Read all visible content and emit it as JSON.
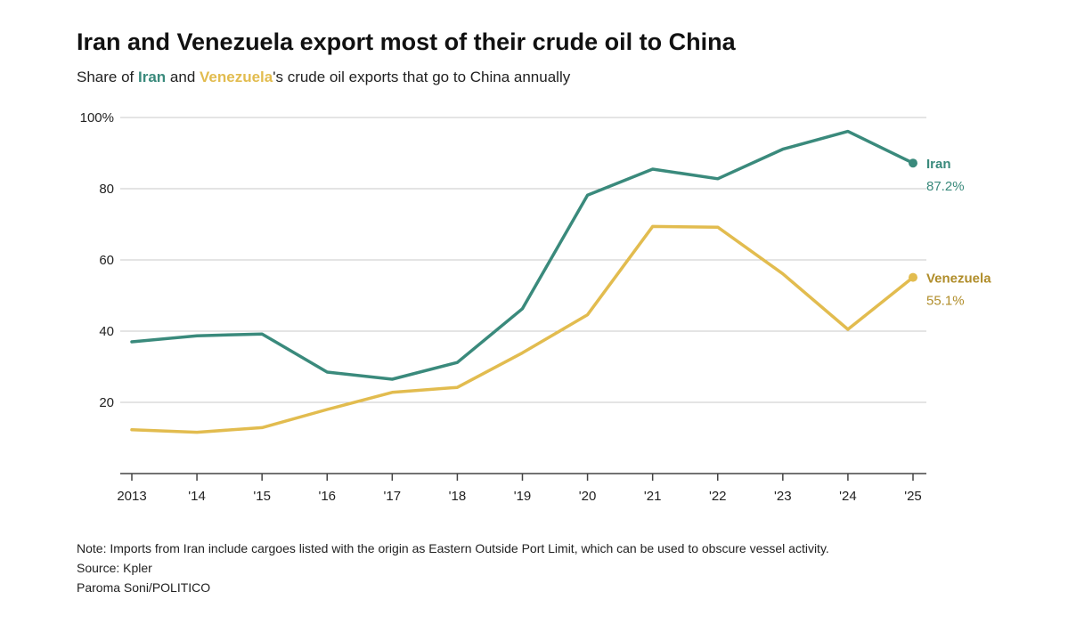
{
  "colors": {
    "iran": "#3a8a7c",
    "venezuela": "#e2bc4f",
    "venezuela_label": "#b08d2a",
    "grid": "#c8c8c8",
    "axis": "#444444"
  },
  "header": {
    "title": "Iran and Venezuela export most of their crude oil to China",
    "subtitle_prefix": "Share of ",
    "subtitle_iran": "Iran",
    "subtitle_and": " and ",
    "subtitle_venezuela": "Venezuela",
    "subtitle_suffix": "'s crude oil exports that go to China annually"
  },
  "footer": {
    "note": "Note: Imports from Iran include cargoes listed with the origin as Eastern Outside Port Limit, which can be used to obscure vessel activity.",
    "source": "Source: Kpler",
    "credit": "Paroma Soni/POLITICO"
  },
  "chart_data": {
    "type": "line",
    "title": "Iran and Venezuela export most of their crude oil to China",
    "subtitle": "Share of Iran and Venezuela's crude oil exports that go to China annually",
    "categories": [
      "2013",
      "'14",
      "'15",
      "'16",
      "'17",
      "'18",
      "'19",
      "'20",
      "'21",
      "'22",
      "'23",
      "'24",
      "'25"
    ],
    "ylim": [
      0,
      100
    ],
    "yticks": [
      20,
      40,
      60,
      80,
      100
    ],
    "ytick_labels": [
      "20",
      "40",
      "60",
      "80",
      "100%"
    ],
    "grid": true,
    "series": [
      {
        "name": "Iran",
        "color": "#3a8a7c",
        "values": [
          37,
          38.7,
          39.2,
          28.5,
          26.5,
          31.2,
          46.3,
          78.2,
          85.5,
          82.8,
          91.1,
          96.1,
          87.2
        ],
        "end_label": "87.2%"
      },
      {
        "name": "Venezuela",
        "color": "#e2bc4f",
        "values": [
          12.3,
          11.6,
          12.9,
          18.0,
          22.8,
          24.2,
          33.9,
          44.6,
          69.4,
          69.2,
          56.1,
          40.5,
          55.1
        ],
        "end_label": "55.1%"
      }
    ]
  }
}
